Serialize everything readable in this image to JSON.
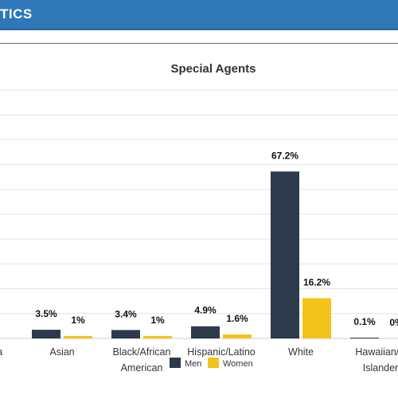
{
  "header": {
    "title": "TICS"
  },
  "chart_data": {
    "type": "bar",
    "title": "Special Agents",
    "categories": [
      [
        "aska"
      ],
      [
        "Asian"
      ],
      [
        "Black/African",
        "American"
      ],
      [
        "Hispanic/Latino"
      ],
      [
        "White"
      ],
      [
        "Hawaiian/P",
        "Islander"
      ]
    ],
    "series": [
      {
        "name": "Men",
        "color": "#2c3a4b",
        "values": [
          null,
          3.5,
          3.4,
          4.9,
          67.2,
          0.1
        ],
        "labels": [
          "%",
          "3.5%",
          "3.4%",
          "4.9%",
          "67.2%",
          "0.1%"
        ]
      },
      {
        "name": "Women",
        "color": "#f2c31b",
        "values": [
          null,
          1.0,
          1.0,
          1.6,
          16.2,
          0
        ],
        "labels": [
          "",
          "1%",
          "1%",
          "1.6%",
          "16.2%",
          "0%"
        ]
      }
    ],
    "ylim": [
      0,
      100
    ],
    "grid": true,
    "legend": "bottom-center"
  }
}
